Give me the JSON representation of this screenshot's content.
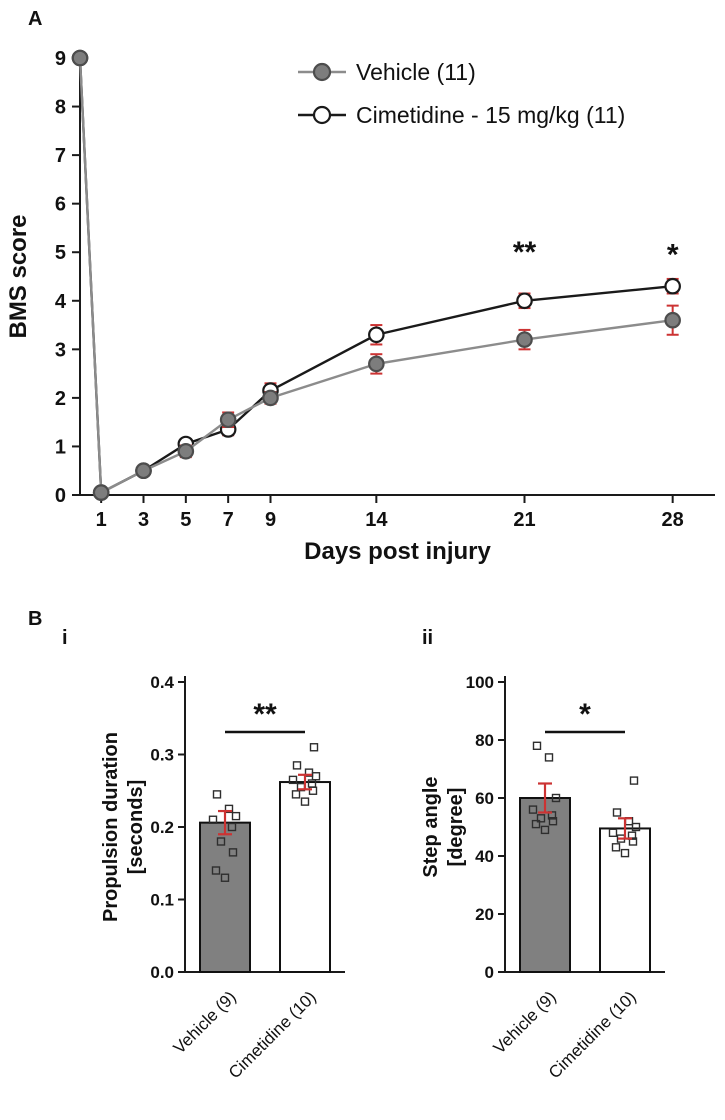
{
  "panels": {
    "a": {
      "label": "A"
    },
    "b": {
      "label": "B"
    }
  },
  "colors": {
    "axis": "#1a1a1a",
    "error": "#cc3333",
    "vehicle_fill": "#7d7d7d",
    "vehicle_edge": "#4d4d4d",
    "vehicle_line": "#8c8c8c",
    "cimetidine_line": "#1a1a1a",
    "bar_gray": "#808080",
    "bar_white": "#ffffff"
  },
  "chart_data": [
    {
      "id": "bms-score",
      "type": "line",
      "xlabel": "Days post injury",
      "ylabel": "BMS score",
      "x": [
        0,
        1,
        3,
        5,
        7,
        9,
        14,
        21,
        28
      ],
      "xticks": [
        1,
        3,
        5,
        7,
        9,
        14,
        21,
        28
      ],
      "ylim": [
        0,
        9
      ],
      "yticks": [
        0,
        1,
        2,
        3,
        4,
        5,
        6,
        7,
        8,
        9
      ],
      "legend_position": "top-right",
      "series": [
        {
          "name": "Vehicle (11)",
          "marker": "filled-gray",
          "values": [
            9,
            0.05,
            0.5,
            0.9,
            1.55,
            2.0,
            2.7,
            3.2,
            3.6
          ],
          "errors": [
            0,
            0.05,
            0.1,
            0.12,
            0.15,
            0.12,
            0.2,
            0.2,
            0.3
          ]
        },
        {
          "name": "Cimetidine - 15 mg/kg (11)",
          "marker": "open-white",
          "values": [
            9,
            0.05,
            0.5,
            1.05,
            1.35,
            2.15,
            3.3,
            4.0,
            4.3
          ],
          "errors": [
            0,
            0.05,
            0.08,
            0.1,
            0.12,
            0.15,
            0.2,
            0.15,
            0.15
          ]
        }
      ],
      "annotations": [
        {
          "x": 21,
          "y": 4.8,
          "text": "**"
        },
        {
          "x": 28,
          "y": 4.75,
          "text": "*"
        }
      ]
    },
    {
      "id": "propulsion-duration",
      "type": "bar",
      "sublabel": "i",
      "ylabel_lines": [
        "Propulsion duration",
        "[seconds]"
      ],
      "categories": [
        "Vehicle (9)",
        "Cimetidine (10)"
      ],
      "values": [
        0.206,
        0.262
      ],
      "errors": [
        0.016,
        0.01
      ],
      "ylim": [
        0,
        0.4
      ],
      "yticks": [
        0.0,
        0.1,
        0.2,
        0.3,
        0.4
      ],
      "ytick_format": 1,
      "bar_fills": [
        "#808080",
        "#ffffff"
      ],
      "scatter": [
        [
          0.13,
          0.14,
          0.165,
          0.18,
          0.2,
          0.21,
          0.215,
          0.225,
          0.245
        ],
        [
          0.235,
          0.245,
          0.25,
          0.255,
          0.26,
          0.265,
          0.27,
          0.275,
          0.285,
          0.31
        ]
      ],
      "significance": "**"
    },
    {
      "id": "step-angle",
      "type": "bar",
      "sublabel": "ii",
      "ylabel_lines": [
        "Step angle",
        "[degree]"
      ],
      "categories": [
        "Vehicle (9)",
        "Cimetidine (10)"
      ],
      "values": [
        60,
        49.5
      ],
      "errors": [
        5,
        3.5
      ],
      "ylim": [
        0,
        100
      ],
      "yticks": [
        0,
        20,
        40,
        60,
        80,
        100
      ],
      "ytick_format": 0,
      "bar_fills": [
        "#808080",
        "#ffffff"
      ],
      "scatter": [
        [
          49,
          51,
          52,
          53,
          54,
          56,
          60,
          74,
          78
        ],
        [
          41,
          43,
          45,
          46,
          47,
          48,
          50,
          52,
          55,
          66
        ]
      ],
      "significance": "*"
    }
  ]
}
